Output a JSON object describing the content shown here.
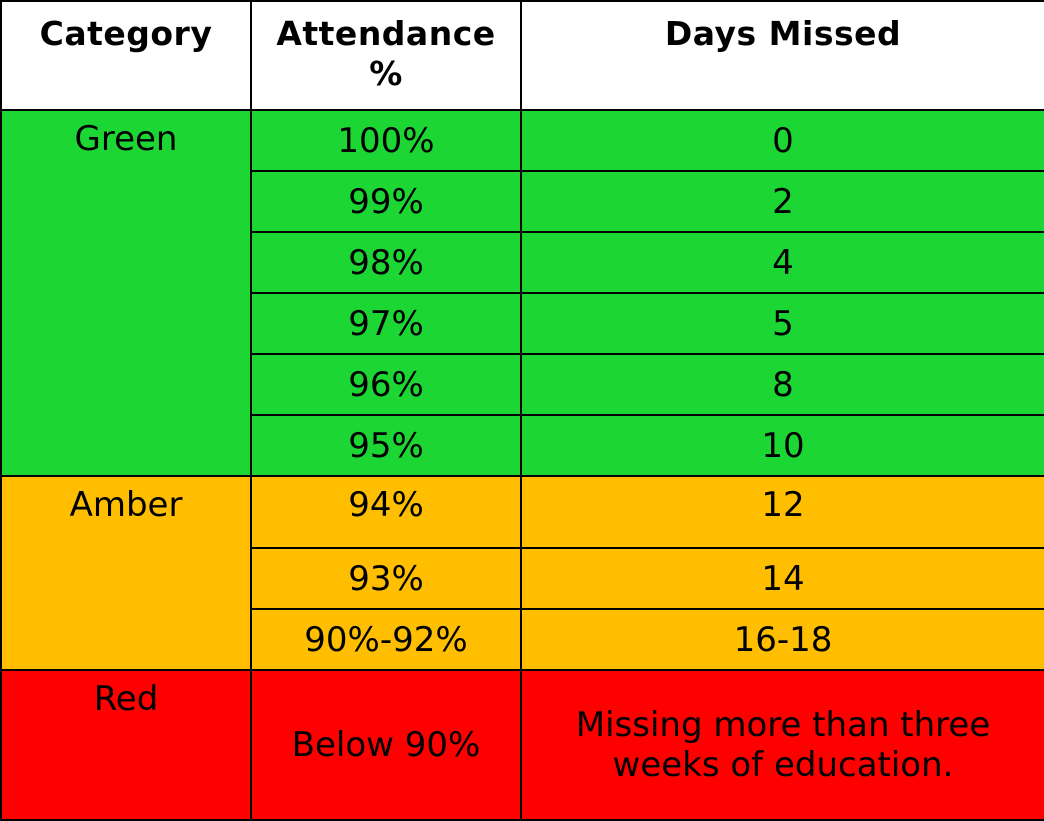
{
  "header": {
    "category": "Category",
    "attendance": "Attendance %",
    "days_missed": "Days Missed"
  },
  "colors": {
    "green": "#1cd634",
    "amber": "#ffbf00",
    "red": "#ff0000"
  },
  "green": {
    "label": "Green",
    "rows": [
      {
        "attendance": "100%",
        "days": "0"
      },
      {
        "attendance": "99%",
        "days": "2"
      },
      {
        "attendance": "98%",
        "days": "4"
      },
      {
        "attendance": "97%",
        "days": "5"
      },
      {
        "attendance": "96%",
        "days": "8"
      },
      {
        "attendance": "95%",
        "days": "10"
      }
    ]
  },
  "amber": {
    "label": "Amber",
    "rows": [
      {
        "attendance": "94%",
        "days": "12"
      },
      {
        "attendance": "93%",
        "days": "14"
      },
      {
        "attendance": "90%-92%",
        "days": "16-18"
      }
    ]
  },
  "red": {
    "label": "Red",
    "attendance": "Below 90%",
    "days": "Missing more than three weeks of education."
  }
}
